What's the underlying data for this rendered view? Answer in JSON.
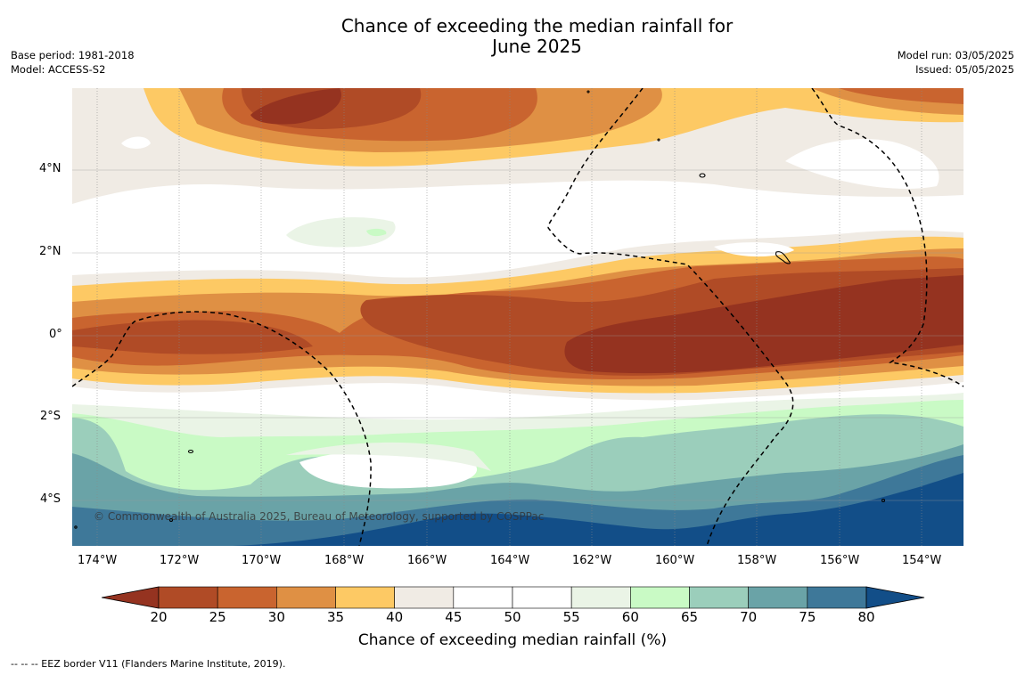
{
  "title_line1": "Chance of exceeding the median rainfall for",
  "title_line2": "June 2025",
  "meta_left": [
    "Base period: 1981-2018",
    "Model: ACCESS-S2"
  ],
  "meta_right": [
    "Model run: 03/05/2025",
    "Issued: 05/05/2025"
  ],
  "lon_labels": [
    "174°W",
    "172°W",
    "170°W",
    "168°W",
    "166°W",
    "164°W",
    "162°W",
    "160°W",
    "158°W",
    "156°W",
    "154°W"
  ],
  "lat_labels": [
    "4°N",
    "2°N",
    "0°",
    "2°S",
    "4°S"
  ],
  "copyright": "© Commonwealth of Australia 2025, Bureau of Meteorology, supported by COSPPac",
  "colorbar": {
    "label": "Chance of exceeding median rainfall (%)",
    "ticks": [
      "20",
      "25",
      "30",
      "35",
      "40",
      "45",
      "50",
      "55",
      "60",
      "65",
      "70",
      "75",
      "80"
    ],
    "colors": [
      "#953320",
      "#b04b26",
      "#c9642f",
      "#df9044",
      "#fdc964",
      "#f0ebe4",
      "#ffffff",
      "#ffffff",
      "#eaf4e6",
      "#c9fac5",
      "#9bcebb",
      "#6aa3a7",
      "#3e7899",
      "#124e88"
    ]
  },
  "legend_note": "--  --  -- EEZ border V11 (Flanders Marine Institute, 2019)."
}
